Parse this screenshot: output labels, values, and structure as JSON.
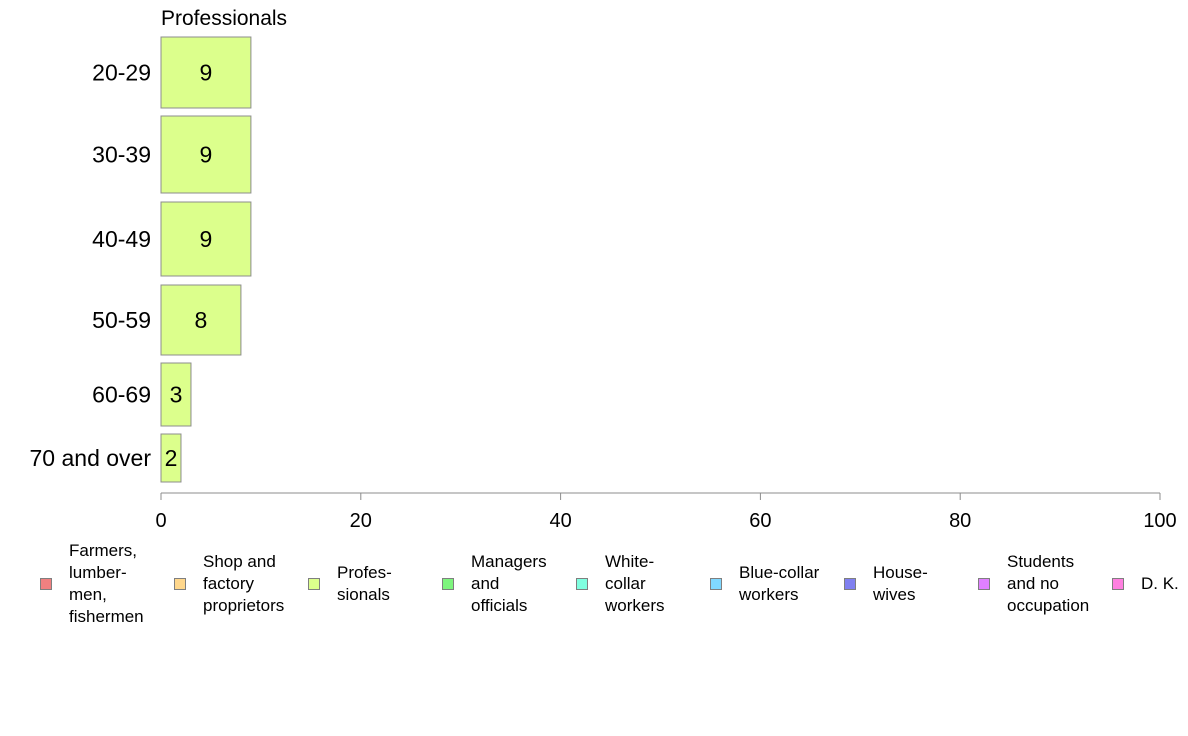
{
  "chart_data": {
    "type": "bar",
    "orientation": "horizontal",
    "title": "Professionals",
    "categories": [
      "20-29",
      "30-39",
      "40-49",
      "50-59",
      "60-69",
      "70 and over"
    ],
    "values": [
      9,
      9,
      9,
      8,
      3,
      2
    ],
    "value_labels": [
      "9",
      "9",
      "9",
      "8",
      "3",
      "2"
    ],
    "xlim": [
      0,
      100
    ],
    "xticks": [
      0,
      20,
      40,
      60,
      80,
      100
    ],
    "xtick_labels": [
      "0",
      "20",
      "40",
      "60",
      "80",
      "100"
    ],
    "bar_color": "#dcff8c",
    "bar_edge_color": "#8c8c8c",
    "grid": false,
    "legend_position": "bottom",
    "legend": [
      {
        "label": "Farmers,\nlumber-\nmen,\nfishermen",
        "color": "#f08080"
      },
      {
        "label": "Shop and\nfactory\nproprietors",
        "color": "#ffd78c"
      },
      {
        "label": "Profes-\nsionals",
        "color": "#dcff8c"
      },
      {
        "label": "Managers\nand\nofficials",
        "color": "#7ef57e"
      },
      {
        "label": "White-\ncollar\nworkers",
        "color": "#80ffe0"
      },
      {
        "label": "Blue-collar\nworkers",
        "color": "#80d8ff"
      },
      {
        "label": "House-\nwives",
        "color": "#8080f0"
      },
      {
        "label": "Students\nand no\noccupation",
        "color": "#e080ff"
      },
      {
        "label": "D. K.",
        "color": "#ff80e0"
      }
    ]
  }
}
